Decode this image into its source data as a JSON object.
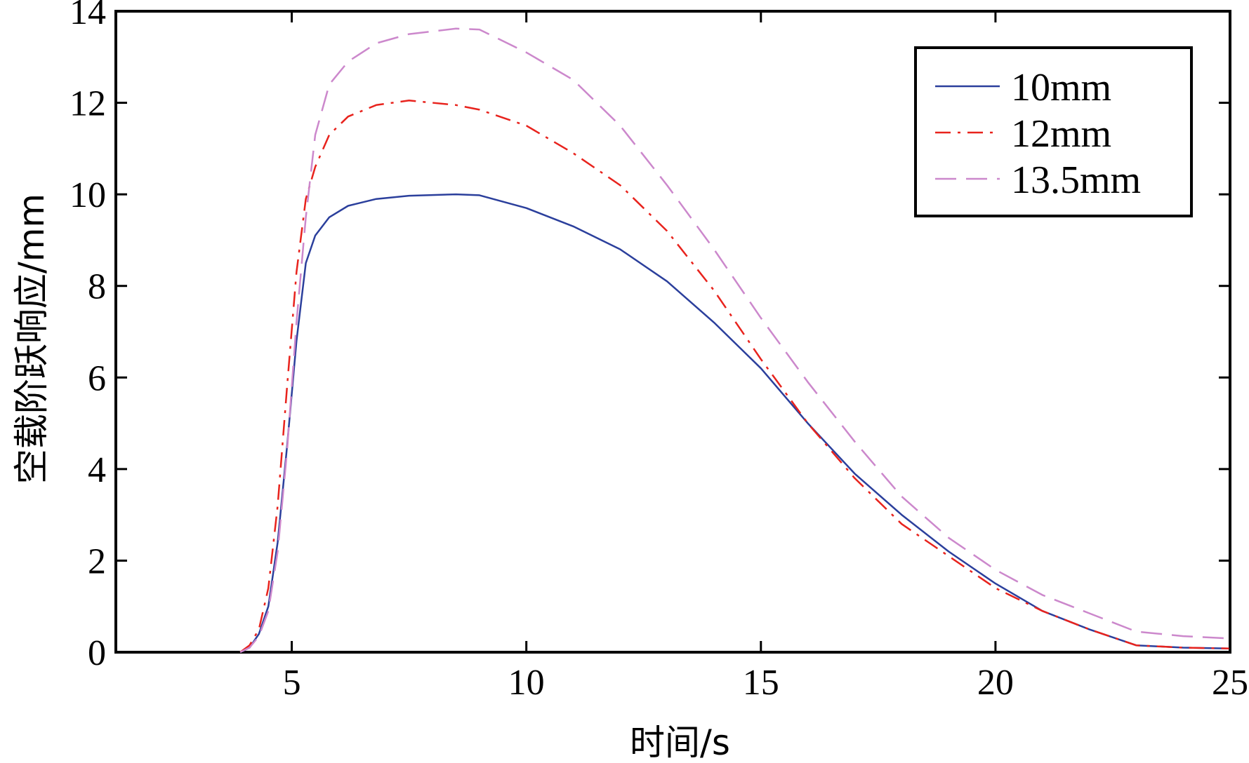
{
  "chart_data": {
    "type": "line",
    "title": "",
    "xlabel": "时间/s",
    "ylabel": "空载阶跃响应/mm",
    "xlim": [
      1.25,
      25
    ],
    "ylim": [
      0,
      14
    ],
    "xticks": [
      5,
      10,
      15,
      20,
      25
    ],
    "yticks": [
      0,
      2,
      4,
      6,
      8,
      10,
      12,
      14
    ],
    "xtick_labels": [
      "5",
      "10",
      "15",
      "20",
      "25"
    ],
    "ytick_labels": [
      "0",
      "2",
      "4",
      "6",
      "8",
      "10",
      "12",
      "14"
    ],
    "grid": false,
    "legend_position": "top-right",
    "series": [
      {
        "name": "10mm",
        "color": "#2b3f9c",
        "dash": "solid",
        "x": [
          3.9,
          4.1,
          4.3,
          4.5,
          4.7,
          4.9,
          5.1,
          5.3,
          5.5,
          5.8,
          6.2,
          6.8,
          7.5,
          8.5,
          9.0,
          10.0,
          11.0,
          12.0,
          13.0,
          14.0,
          15.0,
          16.0,
          17.0,
          18.0,
          19.0,
          20.0,
          21.0,
          22.0,
          23.0,
          24.0,
          25.0
        ],
        "y": [
          0,
          0.1,
          0.4,
          1.0,
          2.4,
          4.5,
          6.8,
          8.5,
          9.1,
          9.5,
          9.75,
          9.9,
          9.97,
          10.0,
          9.98,
          9.7,
          9.3,
          8.8,
          8.1,
          7.2,
          6.2,
          5.0,
          3.9,
          3.0,
          2.2,
          1.5,
          0.9,
          0.5,
          0.15,
          0.1,
          0.08
        ]
      },
      {
        "name": "12mm",
        "color": "#e8231d",
        "dash": "dashdot",
        "x": [
          3.9,
          4.1,
          4.3,
          4.5,
          4.7,
          4.9,
          5.1,
          5.3,
          5.5,
          5.8,
          6.2,
          6.8,
          7.5,
          8.5,
          9.0,
          10.0,
          11.0,
          12.0,
          13.0,
          14.0,
          15.0,
          16.0,
          17.0,
          18.0,
          19.0,
          20.0,
          21.0,
          22.0,
          23.0,
          24.0,
          25.0
        ],
        "y": [
          0,
          0.15,
          0.5,
          1.4,
          3.2,
          5.8,
          8.3,
          9.9,
          10.6,
          11.3,
          11.7,
          11.95,
          12.05,
          11.95,
          11.85,
          11.5,
          10.9,
          10.2,
          9.2,
          7.9,
          6.4,
          5.0,
          3.8,
          2.8,
          2.1,
          1.4,
          0.9,
          0.5,
          0.15,
          0.1,
          0.08
        ]
      },
      {
        "name": "13.5mm",
        "color": "#cc88cc",
        "dash": "dashed",
        "x": [
          3.9,
          4.1,
          4.3,
          4.5,
          4.7,
          4.9,
          5.1,
          5.3,
          5.5,
          5.8,
          6.2,
          6.8,
          7.5,
          8.5,
          9.0,
          10.0,
          11.0,
          12.0,
          13.0,
          14.0,
          15.0,
          16.0,
          17.0,
          18.0,
          19.0,
          20.0,
          21.0,
          22.0,
          23.0,
          24.0,
          25.0
        ],
        "y": [
          0,
          0.1,
          0.35,
          0.9,
          2.2,
          4.4,
          7.2,
          9.5,
          11.3,
          12.4,
          12.9,
          13.3,
          13.5,
          13.62,
          13.6,
          13.1,
          12.5,
          11.5,
          10.2,
          8.8,
          7.3,
          5.9,
          4.6,
          3.4,
          2.5,
          1.8,
          1.25,
          0.85,
          0.45,
          0.35,
          0.3
        ]
      }
    ]
  }
}
